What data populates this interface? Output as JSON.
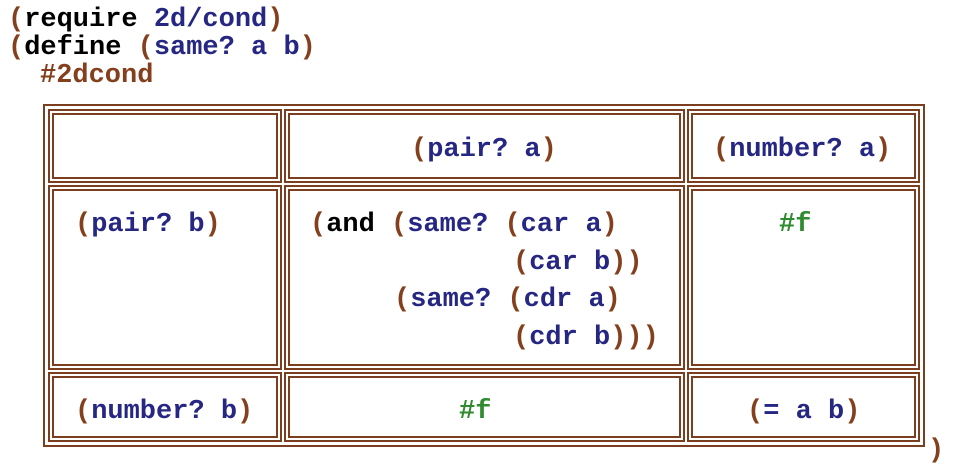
{
  "lines": [
    [
      "(",
      "require",
      "2d/cond",
      ")"
    ],
    [
      "(",
      "define",
      "(",
      "same?",
      "a",
      "b",
      ")"
    ],
    [
      "#2dcond"
    ]
  ],
  "table": {
    "rows": [
      [
        null,
        [
          [
            "(",
            "pair?",
            "a",
            ")"
          ]
        ],
        [
          [
            "(",
            "number?",
            "a",
            ")"
          ]
        ]
      ],
      [
        [
          [
            "(",
            "pair?",
            "b",
            ")"
          ]
        ],
        [
          [
            "(",
            "and",
            "(",
            "same?",
            "(",
            "car",
            "a",
            ")"
          ],
          [
            "(",
            "car",
            "b",
            "))"
          ],
          [
            "(",
            "same?",
            "(",
            "cdr",
            "a",
            ")"
          ],
          [
            "(",
            "cdr",
            "b",
            ")))"
          ]
        ],
        [
          [
            "#f"
          ]
        ]
      ],
      [
        [
          [
            "(",
            "number?",
            "b",
            ")"
          ]
        ],
        [
          [
            "#f"
          ]
        ],
        [
          [
            "(",
            "=",
            "a",
            "b",
            ")"
          ]
        ]
      ]
    ]
  },
  "closing": ")"
}
